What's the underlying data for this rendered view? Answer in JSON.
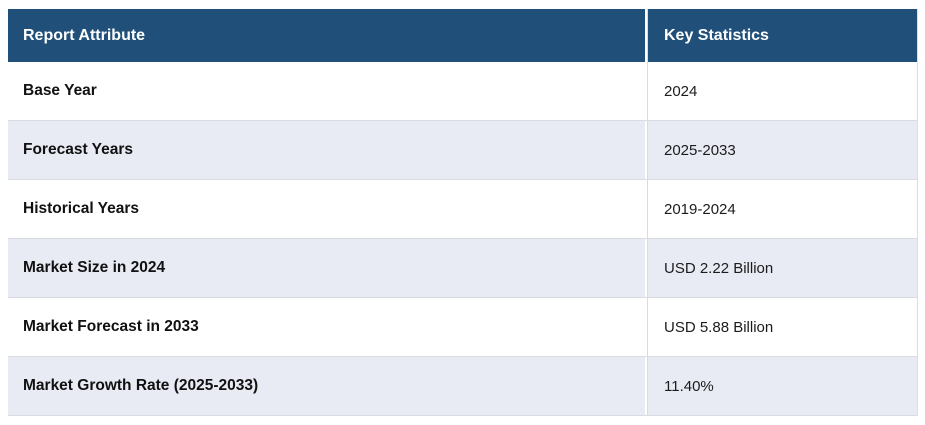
{
  "table": {
    "columns": [
      {
        "label": "Report Attribute"
      },
      {
        "label": "Key Statistics"
      }
    ],
    "rows": [
      {
        "attribute": "Base Year",
        "value": "2024"
      },
      {
        "attribute": "Forecast Years",
        "value": "2025-2033"
      },
      {
        "attribute": "Historical Years",
        "value": "2019-2024"
      },
      {
        "attribute": "Market Size in 2024",
        "value": "USD 2.22 Billion"
      },
      {
        "attribute": "Market Forecast in 2033",
        "value": "USD 5.88 Billion"
      },
      {
        "attribute": "Market Growth Rate (2025-2033)",
        "value": "11.40%"
      }
    ],
    "colors": {
      "header_bg": "#20507a",
      "header_text": "#ffffff",
      "row_bg": "#ffffff",
      "row_alt_bg": "#e8eaf4",
      "row_border": "#d8dbe2",
      "column_divider": "#d9dbe1",
      "label_text": "#111111",
      "value_text": "#1c1c1c"
    }
  },
  "chart_data": {
    "type": "table",
    "columns": [
      "Report Attribute",
      "Key Statistics"
    ],
    "rows": [
      [
        "Base Year",
        "2024"
      ],
      [
        "Forecast Years",
        "2025-2033"
      ],
      [
        "Historical Years",
        "2019-2024"
      ],
      [
        "Market Size in 2024",
        "USD 2.22 Billion"
      ],
      [
        "Market Forecast in 2033",
        "USD 5.88 Billion"
      ],
      [
        "Market Growth Rate (2025-2033)",
        "11.40%"
      ]
    ],
    "layout": {
      "header_position": "top",
      "alternating_rows": true,
      "column_split_ratio": 0.7
    }
  }
}
